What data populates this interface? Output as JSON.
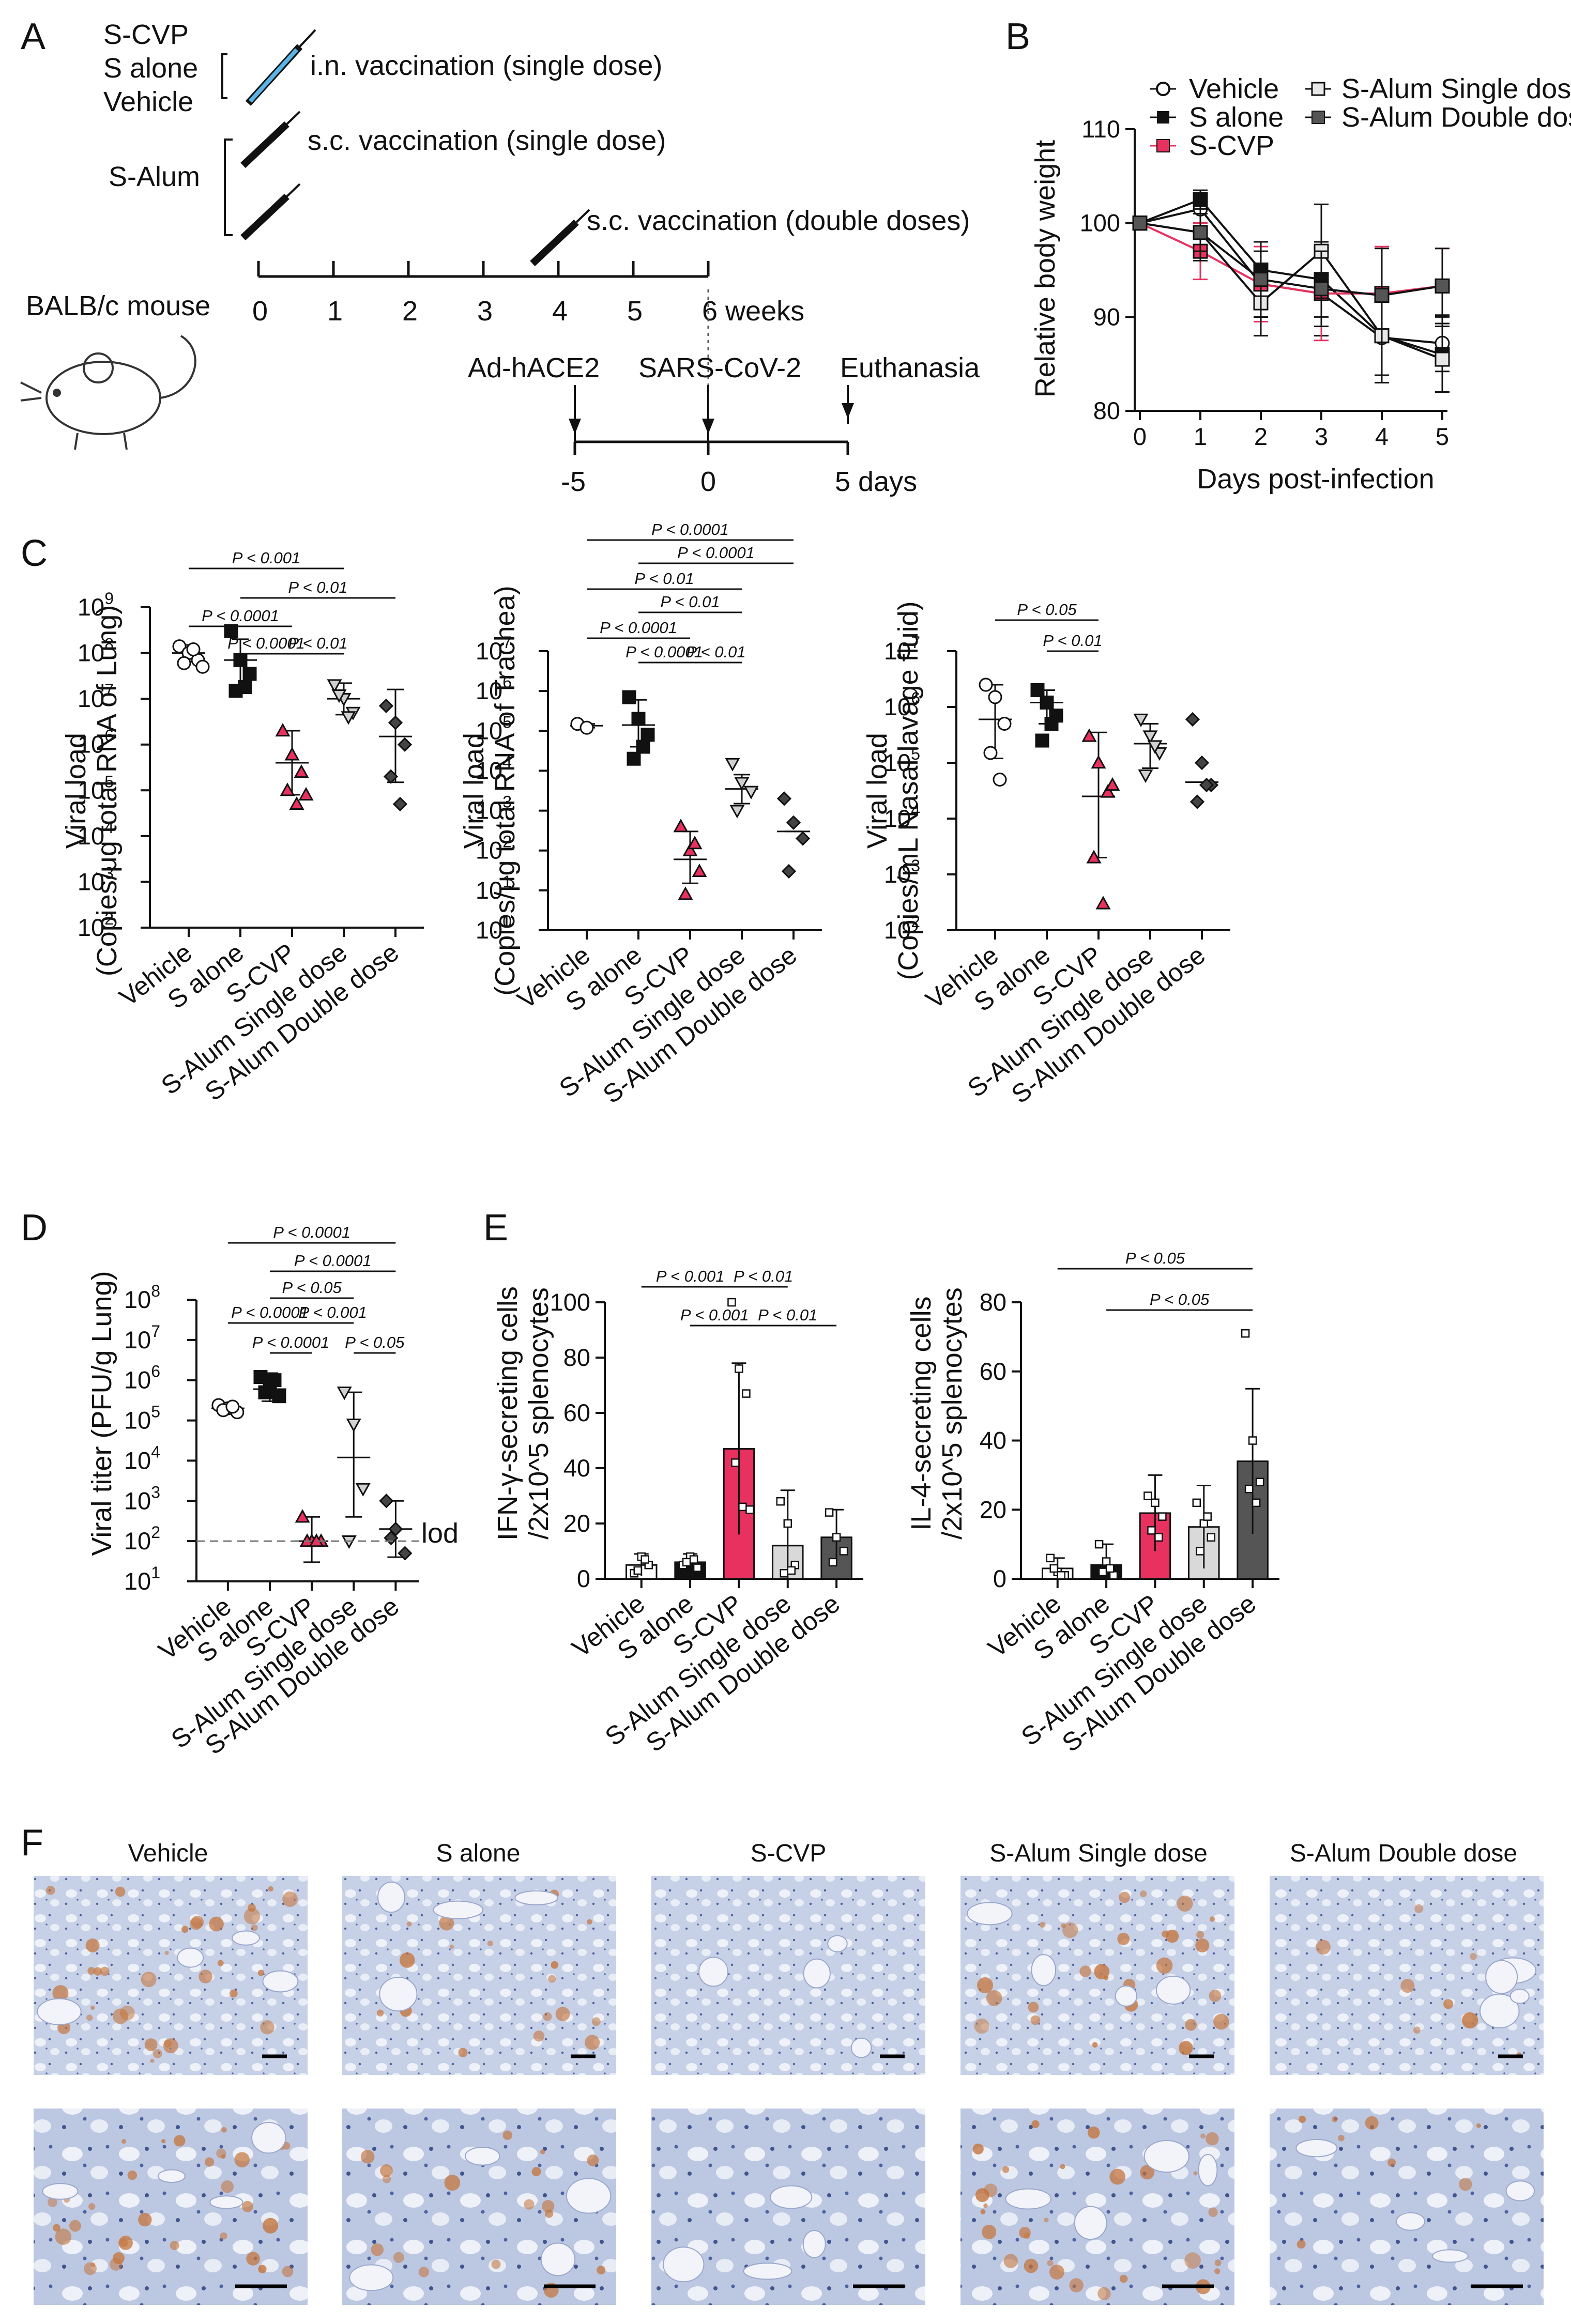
{
  "panels": {
    "a": "A",
    "b": "B",
    "c": "C",
    "d": "D",
    "e": "E",
    "f": "F"
  },
  "groups": [
    "Vehicle",
    "S alone",
    "S-CVP",
    "S-Alum Single dose",
    "S-Alum Double dose"
  ],
  "group_colors": {
    "Vehicle": "#ffffff",
    "S alone": "#111111",
    "S-CVP": "#e8315f",
    "S-Alum Single dose": "#d9d9d9",
    "S-Alum Double dose": "#555555"
  },
  "panel_a": {
    "group_in": [
      "S-CVP",
      "S alone",
      "Vehicle"
    ],
    "in_label": "i.n. vaccination (single dose)",
    "alum_label": "S-Alum",
    "sc_single": "s.c. vaccination (single dose)",
    "sc_double": "s.c. vaccination (double doses)",
    "mouse": "BALB/c  mouse",
    "weeks": [
      "0",
      "1",
      "2",
      "3",
      "4",
      "5",
      "6 weeks"
    ],
    "events": [
      "Ad-hACE2",
      "SARS-CoV-2",
      "Euthanasia"
    ],
    "days": [
      "-5",
      "0",
      "5 days"
    ]
  },
  "panel_b": {
    "ylabel": "Relative body weight",
    "xlabel": "Days post-infection",
    "legend": [
      "Vehicle",
      "S alone",
      "S-CVP",
      "S-Alum Single dose",
      "S-Alum Double dose"
    ]
  },
  "panel_c": {
    "ylabels": [
      [
        "Viral load",
        "(Copies/μg total RNA of Lung)"
      ],
      [
        "Viral load",
        "(Copies/μg total RNA of Trachea)"
      ],
      [
        "Viral load",
        "(Copies/mL Nasal lavage fluid)"
      ]
    ]
  },
  "panel_d": {
    "ylabel": "Viral titer (PFU/g Lung)",
    "lod": "lod"
  },
  "panel_e": {
    "ylabels": [
      [
        "IFN-γ-secreting cells",
        "/2x10^5 splenocytes"
      ],
      [
        "IL-4-secreting cells",
        "/2x10^5 splenocytes"
      ]
    ]
  },
  "pvalues": {
    "p0001": "P < 0.0001",
    "p001": "P < 0.001",
    "p01": "P < 0.01",
    "p05": "P < 0.05"
  },
  "chart_data": [
    {
      "id": "B",
      "type": "line",
      "x": [
        0,
        1,
        2,
        3,
        4,
        5
      ],
      "xlabel": "Days post-infection",
      "ylabel": "Relative body weight",
      "ylim": [
        80,
        110
      ],
      "yticks": [
        80,
        90,
        100,
        110
      ],
      "series": [
        {
          "name": "Vehicle",
          "values": [
            100,
            101.5,
            93.5,
            92.5,
            87.8,
            87.2
          ],
          "err": [
            0,
            1.5,
            3.5,
            4.5,
            4,
            3
          ]
        },
        {
          "name": "S alone",
          "values": [
            100,
            102.5,
            95,
            94,
            88,
            86
          ],
          "err": [
            0,
            1,
            3,
            4,
            5,
            4
          ]
        },
        {
          "name": "S-CVP",
          "values": [
            100,
            97,
            93.5,
            92.5,
            92.5,
            93.3
          ],
          "err": [
            0,
            3,
            4,
            5,
            5,
            4
          ]
        },
        {
          "name": "S-Alum Single dose",
          "values": [
            100,
            99,
            91.5,
            97,
            88,
            85.5
          ],
          "err": [
            0,
            2,
            3.5,
            5,
            5,
            3.5
          ]
        },
        {
          "name": "S-Alum Double dose",
          "values": [
            100,
            99,
            94,
            93,
            92.3,
            93.3
          ],
          "err": [
            0,
            3,
            4,
            4,
            5,
            4
          ]
        }
      ]
    },
    {
      "id": "C-lung",
      "type": "scatter",
      "scale": "log",
      "ylim_exp": [
        2,
        9
      ],
      "categories": [
        "Vehicle",
        "S alone",
        "S-CVP",
        "S-Alum Single dose",
        "S-Alum Double dose"
      ],
      "points": [
        [
          140000000.0,
          100000000.0,
          70000000.0,
          60000000.0,
          120000000.0,
          50000000.0
        ],
        [
          300000000.0,
          70000000.0,
          35000000.0,
          15000000.0,
          18000000.0
        ],
        [
          2000000.0,
          600000.0,
          250000.0,
          100000.0,
          50000.0,
          80000.0
        ],
        [
          20000000.0,
          10000000.0,
          5000000.0,
          12000000.0,
          4000000.0
        ],
        [
          7000000.0,
          3000000.0,
          1000000.0,
          200000.0,
          50000.0
        ]
      ],
      "center": [
        100000000.0,
        70000000.0,
        400000.0,
        10000000.0,
        1500000.0
      ],
      "err_hi": [
        150000000.0,
        200000000.0,
        2000000.0,
        22000000.0,
        16000000.0
      ],
      "err_lo": [
        65000000.0,
        20000000.0,
        80000.0,
        4500000.0,
        150000.0
      ]
    },
    {
      "id": "C-trachea",
      "type": "scatter",
      "scale": "log",
      "ylim_exp": [
        0,
        7
      ],
      "categories": [
        "Vehicle",
        "S alone",
        "S-CVP",
        "S-Alum Single dose",
        "S-Alum Double dose"
      ],
      "points": [
        [
          150000.0,
          120000.0
        ],
        [
          700000.0,
          200000.0,
          80000.0,
          20000.0,
          40000.0
        ],
        [
          400.0,
          100.0,
          30.0,
          8.0,
          150.0
        ],
        [
          15000.0,
          5000.0,
          3000.0,
          1000.0
        ],
        [
          2000.0,
          500.0,
          200.0,
          30.0
        ]
      ],
      "center": [
        135000.0,
        140000.0,
        60.0,
        3500.0,
        300.0
      ],
      "err_hi": [
        150000.0,
        600000.0,
        300.0,
        8000.0,
        300.0
      ],
      "err_lo": [
        120000.0,
        40000.0,
        15.0,
        1500.0,
        300.0
      ]
    },
    {
      "id": "C-nasal",
      "type": "scatter",
      "scale": "log",
      "ylim_exp": [
        2,
        7
      ],
      "categories": [
        "Vehicle",
        "S alone",
        "S-CVP",
        "S-Alum Single dose",
        "S-Alum Double dose"
      ],
      "points": [
        [
          2500000.0,
          1500000.0,
          500000.0,
          150000.0,
          50000.0
        ],
        [
          2000000.0,
          1200000.0,
          700000.0,
          250000.0,
          500000.0
        ],
        [
          300000.0,
          100000.0,
          30000.0,
          2000.0,
          300.0,
          40000.0
        ],
        [
          600000.0,
          300000.0,
          150000.0,
          60000.0,
          200000.0
        ],
        [
          600000.0,
          100000.0,
          40000.0,
          20000.0,
          40000.0
        ]
      ],
      "center": [
        600000.0,
        1200000.0,
        25000.0,
        220000.0,
        45000.0
      ],
      "err_hi": [
        2500000.0,
        2000000.0,
        350000.0,
        500000.0,
        45000.0
      ],
      "err_lo": [
        120000.0,
        500000.0,
        2000.0,
        80000.0,
        45000.0
      ]
    },
    {
      "id": "D",
      "type": "scatter",
      "scale": "log",
      "ylim_exp": [
        1,
        8
      ],
      "ylabel": "Viral titer (PFU/g Lung)",
      "categories": [
        "Vehicle",
        "S alone",
        "S-CVP",
        "S-Alum Single dose",
        "S-Alum Double dose"
      ],
      "points": [
        [
          240000.0,
          200000.0,
          160000.0,
          180000.0,
          220000.0
        ],
        [
          1200000.0,
          800000.0,
          400000.0,
          500000.0,
          1000000.0
        ],
        [
          400.0,
          100.0,
          100.0,
          100.0,
          100.0
        ],
        [
          500000.0,
          80000.0,
          2000.0,
          100.0
        ],
        [
          1000.0,
          200.0,
          50.0,
          120.0
        ]
      ],
      "center": [
        200000.0,
        600000.0,
        100.0,
        12000.0,
        200.0
      ],
      "err_hi": [
        250000.0,
        1500000.0,
        400.0,
        500000.0,
        1000.0
      ],
      "err_lo": [
        160000.0,
        300000.0,
        30.0,
        400.0,
        40.0
      ],
      "lod": 100
    },
    {
      "id": "E-IFN",
      "type": "bar",
      "ylim": [
        0,
        100
      ],
      "yticks": [
        0,
        20,
        40,
        60,
        80,
        100
      ],
      "categories": [
        "Vehicle",
        "S alone",
        "S-CVP",
        "S-Alum Single dose",
        "S-Alum Double dose"
      ],
      "values": [
        5,
        6,
        47,
        12,
        15
      ],
      "err": [
        4,
        3,
        31,
        20,
        10
      ],
      "points": [
        [
          2,
          8,
          5,
          3,
          7
        ],
        [
          5,
          8,
          4,
          6,
          7
        ],
        [
          100,
          76,
          67,
          42,
          26,
          25
        ],
        [
          28,
          20,
          5,
          2,
          3
        ],
        [
          24,
          15,
          10,
          6
        ]
      ]
    },
    {
      "id": "E-IL4",
      "type": "bar",
      "ylim": [
        0,
        80
      ],
      "yticks": [
        0,
        20,
        40,
        60,
        80
      ],
      "categories": [
        "Vehicle",
        "S alone",
        "S-CVP",
        "S-Alum Single dose",
        "S-Alum Double dose"
      ],
      "values": [
        3,
        4,
        19,
        15,
        34
      ],
      "err": [
        3,
        6,
        11,
        12,
        21
      ],
      "points": [
        [
          6,
          2,
          1,
          3,
          1
        ],
        [
          10,
          5,
          1,
          2,
          3
        ],
        [
          24,
          22,
          18,
          14,
          12
        ],
        [
          22,
          16,
          12,
          8,
          18
        ],
        [
          71,
          40,
          28,
          26,
          22
        ]
      ]
    }
  ]
}
